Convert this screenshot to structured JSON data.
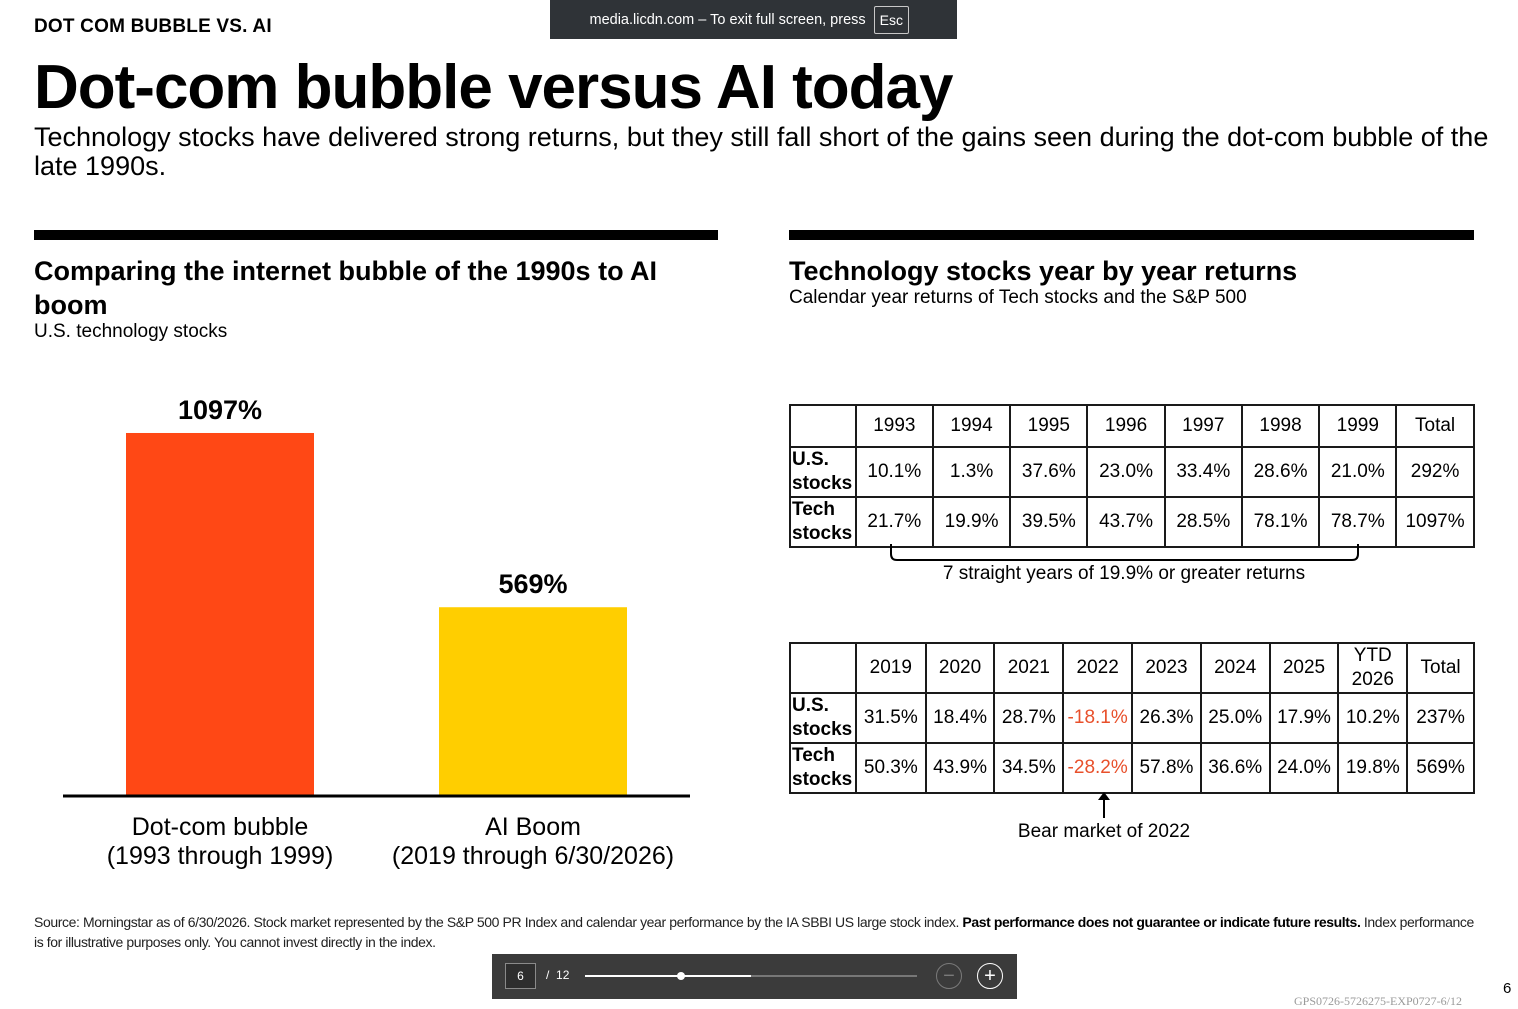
{
  "fullscreen_notice": {
    "text": "media.licdn.com – To exit full screen, press",
    "key": "Esc"
  },
  "header": {
    "kicker": "DOT COM BUBBLE VS. AI",
    "title": "Dot-com bubble versus AI today",
    "subtitle": "Technology stocks have delivered strong returns, but they still fall short of the gains seen during the dot-com bubble of the late 1990s."
  },
  "left_panel": {
    "title": "Comparing the internet bubble of the 1990s to AI boom",
    "subtitle": "U.S. technology stocks",
    "bar_labels": [
      {
        "line1": "Dot-com bubble",
        "line2": "(1993 through 1999)"
      },
      {
        "line1": "AI Boom",
        "line2": "(2019 through 6/30/2026)"
      }
    ]
  },
  "chart_data": {
    "type": "bar",
    "categories": [
      "Dot-com bubble (1993 through 1999)",
      "AI Boom (2019 through 6/30/2026)"
    ],
    "values": [
      1097,
      569
    ],
    "value_labels": [
      "1097%",
      "569%"
    ],
    "colors": [
      "#ff4815",
      "#ffce00"
    ],
    "unit": "%",
    "ylim": [
      0,
      1100
    ],
    "grid": false,
    "axis": "baseline only"
  },
  "right_panel": {
    "title": "Technology stocks year by year returns",
    "subtitle": "Calendar year returns of Tech stocks and the S&P 500",
    "table1": {
      "headers": [
        "",
        "1993",
        "1994",
        "1995",
        "1996",
        "1997",
        "1998",
        "1999",
        "Total"
      ],
      "rows": [
        {
          "label": "U.S. stocks",
          "cells": [
            "10.1%",
            "1.3%",
            "37.6%",
            "23.0%",
            "33.4%",
            "28.6%",
            "21.0%",
            "292%"
          ]
        },
        {
          "label": "Tech stocks",
          "cells": [
            "21.7%",
            "19.9%",
            "39.5%",
            "43.7%",
            "28.5%",
            "78.1%",
            "78.7%",
            "1097%"
          ]
        }
      ],
      "annotation": "7 straight years of 19.9% or greater returns"
    },
    "table2": {
      "headers": [
        "",
        "2019",
        "2020",
        "2021",
        "2022",
        "2023",
        "2024",
        "2025",
        "YTD 2026",
        "Total"
      ],
      "rows": [
        {
          "label": "U.S. stocks",
          "cells": [
            "31.5%",
            "18.4%",
            "28.7%",
            "-18.1%",
            "26.3%",
            "25.0%",
            "17.9%",
            "10.2%",
            "237%"
          ]
        },
        {
          "label": "Tech stocks",
          "cells": [
            "50.3%",
            "43.9%",
            "34.5%",
            "-28.2%",
            "57.8%",
            "36.6%",
            "24.0%",
            "19.8%",
            "569%"
          ]
        }
      ],
      "negative_color": "#e8502b",
      "annotation": "Bear market of 2022"
    }
  },
  "footer": {
    "source_plain": "Source: Morningstar as of 6/30/2026. Stock market represented by the S&P 500 PR Index and calendar year performance by the IA SBBI US large stock index. ",
    "source_bold": "Past performance does not guarantee or indicate future results.",
    "source_tail": " Index performance is for illustrative purposes only. You cannot invest directly in the index.",
    "page_number": "6",
    "doc_code": "GPS0726-5726275-EXP0727-6/12"
  },
  "viewer": {
    "current_page": "6",
    "separator": "/",
    "total_pages": "12",
    "progress": 0.5,
    "zoom_out_icon": "minus-circle-icon",
    "zoom_in_icon": "plus-circle-icon"
  }
}
